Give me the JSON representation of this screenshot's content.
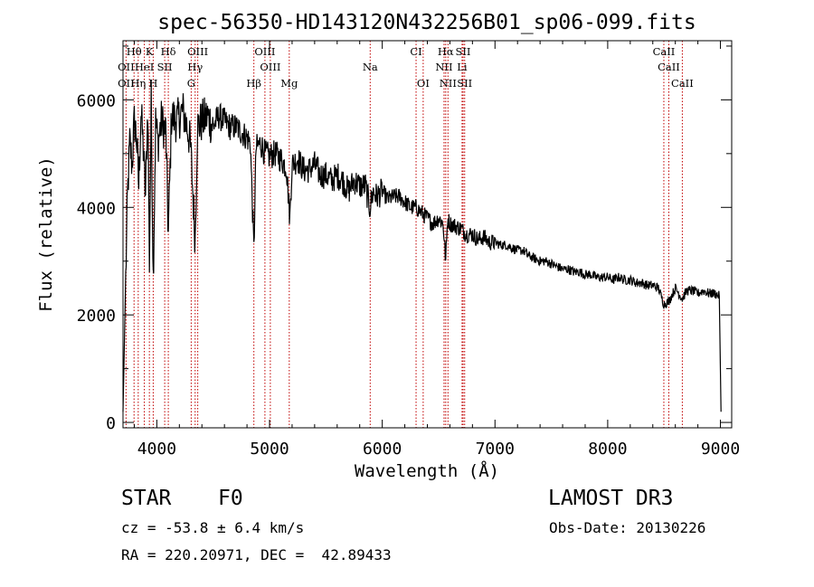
{
  "chart_data": {
    "type": "line",
    "title": "spec-56350-HD143120N432256B01_sp06-099.fits",
    "xlabel": "Wavelength (Å)",
    "ylabel": "Flux (relative)",
    "xlim": [
      3700,
      9100
    ],
    "ylim": [
      -100,
      7100
    ],
    "x_ticks": [
      4000,
      5000,
      6000,
      7000,
      8000,
      9000
    ],
    "y_ticks": [
      0,
      2000,
      4000,
      6000
    ],
    "grid": false,
    "series": [
      {
        "name": "flux",
        "x": [
          3700,
          3720,
          3740,
          3760,
          3780,
          3800,
          3820,
          3840,
          3860,
          3880,
          3900,
          3920,
          3934,
          3950,
          3968,
          3990,
          4010,
          4040,
          4080,
          4102,
          4130,
          4180,
          4230,
          4280,
          4300,
          4340,
          4360,
          4400,
          4450,
          4500,
          4550,
          4600,
          4650,
          4700,
          4750,
          4800,
          4830,
          4861,
          4880,
          4920,
          4960,
          5000,
          5050,
          5100,
          5150,
          5180,
          5200,
          5250,
          5300,
          5350,
          5400,
          5450,
          5500,
          5550,
          5600,
          5650,
          5700,
          5750,
          5800,
          5850,
          5890,
          5920,
          5950,
          6000,
          6050,
          6100,
          6150,
          6200,
          6250,
          6300,
          6350,
          6400,
          6450,
          6500,
          6540,
          6563,
          6580,
          6600,
          6650,
          6700,
          6750,
          6800,
          6850,
          6900,
          6950,
          7000,
          7050,
          7100,
          7150,
          7200,
          7250,
          7300,
          7350,
          7400,
          7450,
          7500,
          7550,
          7600,
          7650,
          7700,
          7750,
          7800,
          7850,
          7900,
          7950,
          8000,
          8050,
          8100,
          8150,
          8200,
          8250,
          8300,
          8350,
          8400,
          8450,
          8498,
          8542,
          8600,
          8662,
          8700,
          8750,
          8800,
          8850,
          8900,
          8950,
          8990,
          9000,
          9005
        ],
        "y": [
          200,
          2300,
          4200,
          5200,
          4800,
          5600,
          5300,
          4400,
          5800,
          5100,
          4200,
          5900,
          3000,
          6000,
          2700,
          5600,
          5200,
          5600,
          5400,
          3500,
          5700,
          5600,
          5800,
          5400,
          5100,
          3400,
          5500,
          5600,
          5700,
          5500,
          5700,
          5600,
          5500,
          5500,
          5400,
          5300,
          5200,
          3200,
          5100,
          5200,
          5000,
          4950,
          5000,
          4900,
          4750,
          3800,
          4800,
          4900,
          4700,
          4700,
          4800,
          4600,
          4600,
          4500,
          4600,
          4500,
          4300,
          4500,
          4400,
          4400,
          4000,
          4300,
          4200,
          4300,
          4150,
          4200,
          4200,
          4100,
          4000,
          4000,
          3900,
          3800,
          3700,
          3800,
          3700,
          3000,
          3800,
          3700,
          3650,
          3600,
          3500,
          3500,
          3400,
          3450,
          3350,
          3350,
          3300,
          3300,
          3250,
          3200,
          3200,
          3100,
          3050,
          3000,
          3000,
          2950,
          2900,
          2850,
          2850,
          2800,
          2800,
          2750,
          2750,
          2700,
          2700,
          2700,
          2650,
          2700,
          2650,
          2650,
          2600,
          2600,
          2550,
          2550,
          2500,
          2200,
          2250,
          2500,
          2300,
          2450,
          2450,
          2400,
          2450,
          2400,
          2400,
          2350,
          1000,
          200
        ],
        "color": "#000000"
      }
    ],
    "line_markers": [
      {
        "label": "Hθ",
        "wl": 3798,
        "row": 0
      },
      {
        "label": "K",
        "wl": 3934,
        "row": 0
      },
      {
        "label": "Hδ",
        "wl": 4102,
        "row": 0
      },
      {
        "label": "OIII",
        "wl": 4363,
        "row": 0
      },
      {
        "label": "OIII",
        "wl": 4959,
        "row": 0
      },
      {
        "label": "CI",
        "wl": 6300,
        "row": 0
      },
      {
        "label": "Hα",
        "wl": 6563,
        "row": 0
      },
      {
        "label": "SII",
        "wl": 6717,
        "row": 0
      },
      {
        "label": "CaII",
        "wl": 8498,
        "row": 0
      },
      {
        "label": "OII",
        "wl": 3727,
        "row": 1
      },
      {
        "label": "HeI",
        "wl": 3889,
        "row": 1
      },
      {
        "label": "SII",
        "wl": 4070,
        "row": 1
      },
      {
        "label": "Hγ",
        "wl": 4340,
        "row": 1
      },
      {
        "label": "OIII",
        "wl": 5007,
        "row": 1
      },
      {
        "label": "Na",
        "wl": 5893,
        "row": 1
      },
      {
        "label": "NII",
        "wl": 6548,
        "row": 1
      },
      {
        "label": "Li",
        "wl": 6708,
        "row": 1
      },
      {
        "label": "CaII",
        "wl": 8542,
        "row": 1
      },
      {
        "label": "OII",
        "wl": 3727,
        "row": 2
      },
      {
        "label": "Hη",
        "wl": 3835,
        "row": 2
      },
      {
        "label": "H",
        "wl": 3968,
        "row": 2
      },
      {
        "label": "G",
        "wl": 4305,
        "row": 2
      },
      {
        "label": "Hβ",
        "wl": 4861,
        "row": 2
      },
      {
        "label": "Mg",
        "wl": 5175,
        "row": 2
      },
      {
        "label": "OI",
        "wl": 6363,
        "row": 2
      },
      {
        "label": "NII",
        "wl": 6583,
        "row": 2
      },
      {
        "label": "SII",
        "wl": 6731,
        "row": 2
      },
      {
        "label": "CaII",
        "wl": 8662,
        "row": 2
      }
    ]
  },
  "info": {
    "obj_class": "STAR",
    "subclass": "F0",
    "survey": "LAMOST DR3",
    "cz": "cz = -53.8 ± 6.4 km/s",
    "obs_date": "Obs-Date: 20130226",
    "coords": "RA = 220.20971, DEC =  42.89433"
  }
}
